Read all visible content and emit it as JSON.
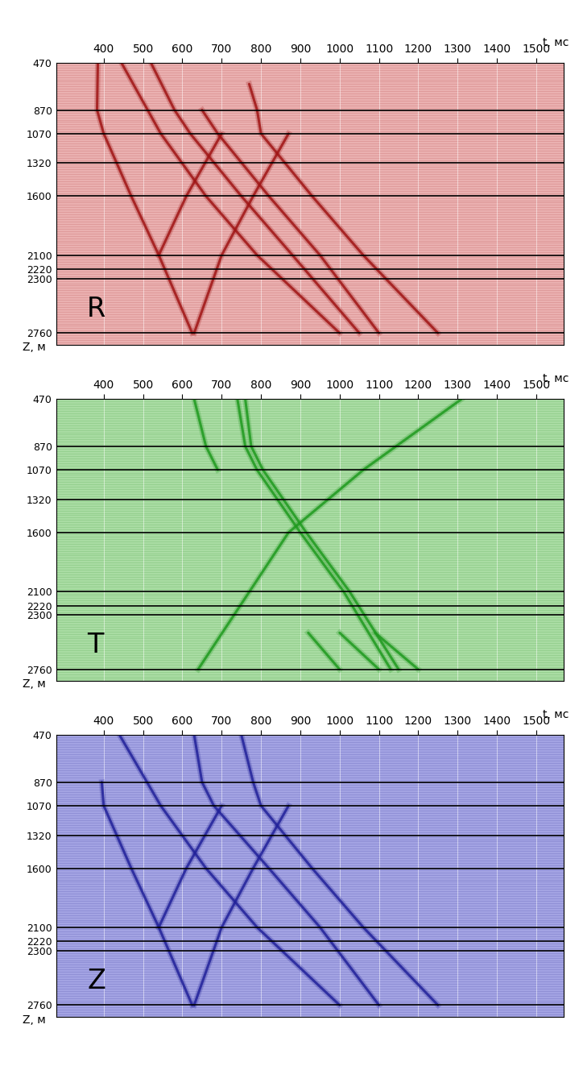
{
  "chart_data": [
    {
      "type": "line",
      "annotations": [
        "R"
      ],
      "x_label": "t, мс",
      "y_label": "Z, м",
      "xlim": [
        280,
        1570
      ],
      "ylim": [
        2860,
        470
      ],
      "xticks": [
        400,
        500,
        600,
        700,
        800,
        900,
        1000,
        1100,
        1200,
        1300,
        1400,
        1500
      ],
      "yticks": [
        470,
        870,
        1070,
        1320,
        1600,
        2100,
        2220,
        2300,
        2760
      ],
      "grid": true,
      "color": "#a01515",
      "series": [
        {
          "x": [
            385,
            383,
            400,
            470,
            540,
            625
          ],
          "values": [
            470,
            870,
            1070,
            1600,
            2100,
            2760
          ]
        },
        {
          "x": [
            445,
            545,
            660,
            790,
            1000
          ],
          "values": [
            470,
            1070,
            1600,
            2100,
            2760
          ]
        },
        {
          "x": [
            520,
            580,
            620,
            750,
            880,
            1050
          ],
          "values": [
            470,
            870,
            1070,
            1600,
            2100,
            2760
          ]
        },
        {
          "x": [
            650,
            690,
            820,
            950,
            1100
          ],
          "values": [
            870,
            1070,
            1600,
            2100,
            2760
          ]
        },
        {
          "x": [
            770,
            790,
            800,
            930,
            1060,
            1250
          ],
          "values": [
            650,
            870,
            1070,
            1600,
            2100,
            2760
          ]
        },
        {
          "x": [
            630,
            700,
            780,
            870
          ],
          "values": [
            2760,
            2100,
            1600,
            1070
          ]
        },
        {
          "x": [
            540,
            610,
            700
          ],
          "values": [
            2100,
            1600,
            1070
          ]
        }
      ]
    },
    {
      "type": "line",
      "annotations": [
        "T"
      ],
      "x_label": "t, мс",
      "y_label": "Z, м",
      "xlim": [
        280,
        1570
      ],
      "ylim": [
        2860,
        470
      ],
      "xticks": [
        400,
        500,
        600,
        700,
        800,
        900,
        1000,
        1100,
        1200,
        1300,
        1400,
        1500
      ],
      "yticks": [
        470,
        870,
        1070,
        1320,
        1600,
        2100,
        2220,
        2300,
        2760
      ],
      "grid": true,
      "color": "#1f9a1f",
      "series": [
        {
          "x": [
            740,
            760,
            790,
            900,
            1010,
            1130
          ],
          "values": [
            470,
            870,
            1070,
            1600,
            2100,
            2760
          ]
        },
        {
          "x": [
            760,
            775,
            805,
            915,
            1025,
            1150
          ],
          "values": [
            470,
            870,
            1070,
            1600,
            2100,
            2760
          ]
        },
        {
          "x": [
            640,
            870,
            1060,
            1310
          ],
          "values": [
            2760,
            1600,
            1070,
            470
          ]
        },
        {
          "x": [
            630,
            660,
            690
          ],
          "values": [
            470,
            870,
            1070
          ]
        },
        {
          "x": [
            920,
            1000
          ],
          "values": [
            2450,
            2760
          ]
        },
        {
          "x": [
            1000,
            1100
          ],
          "values": [
            2450,
            2760
          ]
        },
        {
          "x": [
            1090,
            1200
          ],
          "values": [
            2450,
            2760
          ]
        }
      ]
    },
    {
      "type": "line",
      "annotations": [
        "Z"
      ],
      "x_label": "t, мс",
      "y_label": "Z, м",
      "xlim": [
        280,
        1570
      ],
      "ylim": [
        2860,
        470
      ],
      "xticks": [
        400,
        500,
        600,
        700,
        800,
        900,
        1000,
        1100,
        1200,
        1300,
        1400,
        1500
      ],
      "yticks": [
        470,
        870,
        1070,
        1320,
        1600,
        2100,
        2220,
        2300,
        2760
      ],
      "grid": true,
      "color": "#22229a",
      "series": [
        {
          "x": [
            395,
            400,
            470,
            540,
            625
          ],
          "values": [
            870,
            1070,
            1600,
            2100,
            2760
          ]
        },
        {
          "x": [
            440,
            545,
            660,
            790,
            1000
          ],
          "values": [
            470,
            1070,
            1600,
            2100,
            2760
          ]
        },
        {
          "x": [
            630,
            650,
            680,
            820,
            950,
            1100
          ],
          "values": [
            470,
            870,
            1070,
            1600,
            2100,
            2760
          ]
        },
        {
          "x": [
            750,
            780,
            800,
            930,
            1060,
            1250
          ],
          "values": [
            470,
            870,
            1070,
            1600,
            2100,
            2760
          ]
        },
        {
          "x": [
            630,
            700,
            780,
            870
          ],
          "values": [
            2760,
            2100,
            1600,
            1070
          ]
        },
        {
          "x": [
            540,
            610,
            700
          ],
          "values": [
            2100,
            1600,
            1070
          ]
        }
      ]
    }
  ]
}
